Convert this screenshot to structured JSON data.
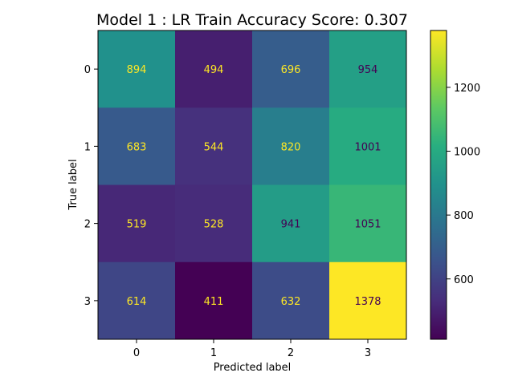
{
  "chart_data": {
    "type": "heatmap",
    "title": "Model 1 : LR Train Accuracy Score: 0.307",
    "xlabel": "Predicted label",
    "ylabel": "True label",
    "x_categories": [
      "0",
      "1",
      "2",
      "3"
    ],
    "y_categories": [
      "0",
      "1",
      "2",
      "3"
    ],
    "values": [
      [
        894,
        494,
        696,
        954
      ],
      [
        683,
        544,
        820,
        1001
      ],
      [
        519,
        528,
        941,
        1051
      ],
      [
        614,
        411,
        632,
        1378
      ]
    ],
    "colormap": "viridis",
    "colorbar": {
      "range": [
        411,
        1378
      ],
      "ticks": [
        "600",
        "800",
        "1000",
        "1200"
      ],
      "tick_values": [
        600,
        800,
        1000,
        1200
      ]
    },
    "text_colors": {
      "on_dark": "#fde725",
      "on_light": "#440154"
    }
  }
}
